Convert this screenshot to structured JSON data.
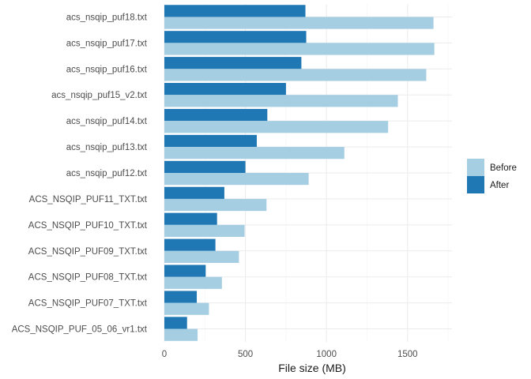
{
  "chart_data": {
    "type": "bar",
    "orientation": "horizontal",
    "xlabel": "File size (MB)",
    "ylabel": "",
    "xlim": [
      0,
      1750
    ],
    "x_ticks": [
      0,
      500,
      1000,
      1500
    ],
    "grid": true,
    "legend_position": "right",
    "categories": [
      "acs_nsqip_puf18.txt",
      "acs_nsqip_puf17.txt",
      "acs_nsqip_puf16.txt",
      "acs_nsqip_puf15_v2.txt",
      "acs_nsqip_puf14.txt",
      "acs_nsqip_puf13.txt",
      "acs_nsqip_puf12.txt",
      "ACS_NSQIP_PUF11_TXT.txt",
      "ACS_NSQIP_PUF10_TXT.txt",
      "ACS_NSQIP_PUF09_TXT.txt",
      "ACS_NSQIP_PUF08_TXT.txt",
      "ACS_NSQIP_PUF07_TXT.txt",
      "ACS_NSQIP_PUF_05_06_vr1.txt"
    ],
    "series": [
      {
        "name": "Before",
        "color": "#a6cee3",
        "values": [
          1660,
          1665,
          1615,
          1440,
          1380,
          1110,
          890,
          630,
          495,
          460,
          355,
          275,
          205
        ]
      },
      {
        "name": "After",
        "color": "#1f78b4",
        "values": [
          870,
          875,
          845,
          750,
          635,
          570,
          500,
          370,
          325,
          315,
          255,
          200,
          140
        ]
      }
    ]
  }
}
